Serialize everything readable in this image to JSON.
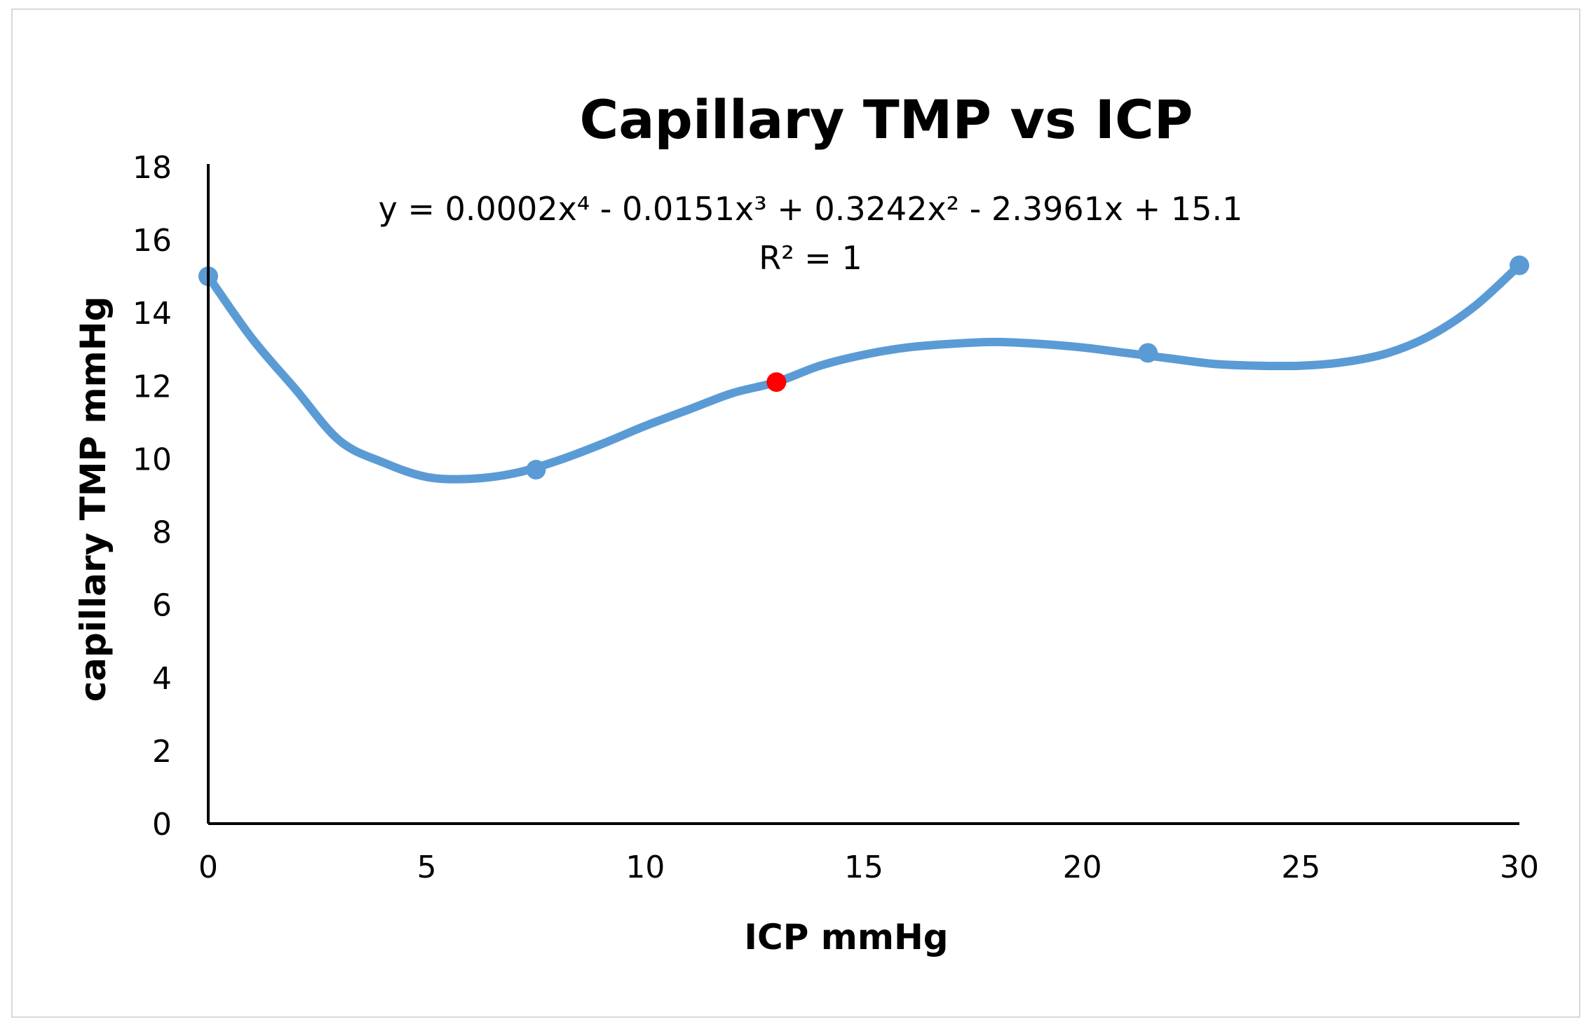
{
  "chart_data": {
    "type": "scatter",
    "title": "Capillary TMP vs ICP",
    "xlabel": "ICP mmHg",
    "ylabel": "capillary TMP mmHg",
    "xlim": [
      0,
      30
    ],
    "ylim": [
      0,
      18
    ],
    "x_ticks": [
      0,
      5,
      10,
      15,
      20,
      25,
      30
    ],
    "y_ticks": [
      0,
      2,
      4,
      6,
      8,
      10,
      12,
      14,
      16,
      18
    ],
    "grid": false,
    "series": [
      {
        "name": "Capillary TMP",
        "color": "#5b9bd5",
        "x": [
          0,
          7.5,
          21.5,
          30
        ],
        "y": [
          15.0,
          9.7,
          12.9,
          15.3
        ]
      }
    ],
    "highlight_point": {
      "x": 13,
      "y": 12.1,
      "color": "#ff0000"
    },
    "trendline": {
      "type": "polynomial",
      "order": 4,
      "color": "#5b9bd5",
      "equation": "y = 0.0002x⁴ - 0.0151x³ + 0.3242x² - 2.3961x + 15.1",
      "r_squared": "R² = 1",
      "through_points": [
        [
          0,
          15.0
        ],
        [
          1,
          13.3
        ],
        [
          2,
          11.9
        ],
        [
          3,
          10.5
        ],
        [
          4,
          9.9
        ],
        [
          5,
          9.5
        ],
        [
          6,
          9.45
        ],
        [
          7,
          9.6
        ],
        [
          8,
          9.95
        ],
        [
          9,
          10.4
        ],
        [
          10,
          10.9
        ],
        [
          11,
          11.35
        ],
        [
          12,
          11.8
        ],
        [
          13,
          12.1
        ],
        [
          14,
          12.55
        ],
        [
          15,
          12.85
        ],
        [
          16,
          13.05
        ],
        [
          17,
          13.15
        ],
        [
          18,
          13.2
        ],
        [
          19,
          13.15
        ],
        [
          20,
          13.05
        ],
        [
          21,
          12.9
        ],
        [
          22,
          12.75
        ],
        [
          23,
          12.6
        ],
        [
          24,
          12.55
        ],
        [
          25,
          12.55
        ],
        [
          26,
          12.65
        ],
        [
          27,
          12.9
        ],
        [
          28,
          13.4
        ],
        [
          29,
          14.2
        ],
        [
          30,
          15.3
        ]
      ]
    }
  }
}
